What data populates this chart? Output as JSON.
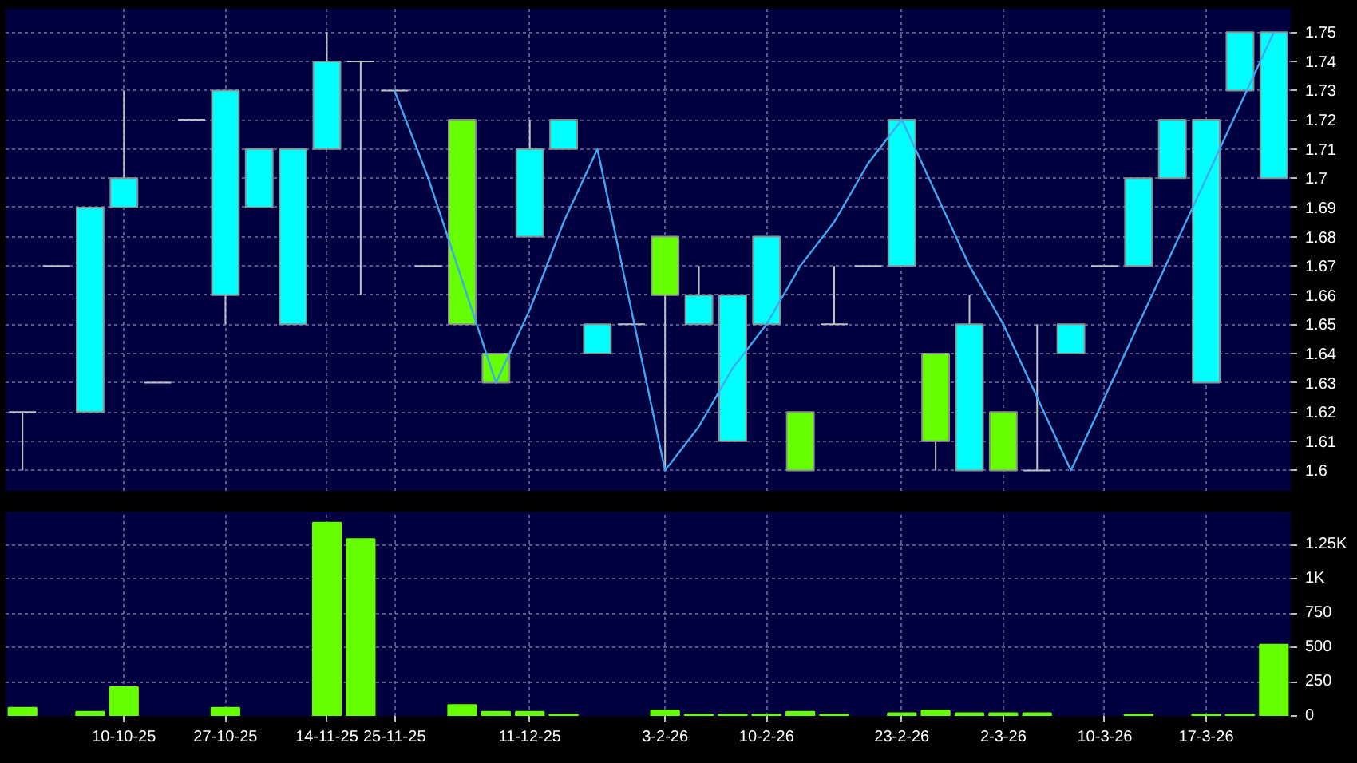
{
  "chart_data": [
    {
      "type": "candlestick",
      "categories": [
        null,
        null,
        null,
        "10-10-25",
        null,
        null,
        "27-10-25",
        null,
        null,
        "14-11-25",
        null,
        "25-11-25",
        null,
        null,
        null,
        "11-12-25",
        null,
        null,
        null,
        "3-2-26",
        null,
        null,
        "10-2-26",
        null,
        null,
        null,
        "23-2-26",
        null,
        null,
        "2-3-26",
        null,
        null,
        "10-3-26",
        null,
        null,
        "17-3-26",
        null,
        null
      ],
      "ohlc": [
        [
          1.62,
          1.62,
          1.6,
          1.62
        ],
        [
          1.67,
          1.67,
          1.67,
          1.67
        ],
        [
          1.62,
          1.69,
          1.62,
          1.69
        ],
        [
          1.69,
          1.73,
          1.69,
          1.7
        ],
        [
          1.63,
          1.63,
          1.63,
          1.63
        ],
        [
          1.72,
          1.72,
          1.72,
          1.72
        ],
        [
          1.66,
          1.73,
          1.65,
          1.73
        ],
        [
          1.69,
          1.71,
          1.69,
          1.71
        ],
        [
          1.65,
          1.71,
          1.65,
          1.71
        ],
        [
          1.71,
          1.75,
          1.71,
          1.74
        ],
        [
          1.74,
          1.74,
          1.66,
          1.74
        ],
        [
          1.73,
          1.73,
          1.73,
          1.73
        ],
        [
          1.67,
          1.67,
          1.67,
          1.67
        ],
        [
          1.72,
          1.72,
          1.65,
          1.65
        ],
        [
          1.64,
          1.64,
          1.63,
          1.63
        ],
        [
          1.68,
          1.72,
          1.68,
          1.71
        ],
        [
          1.71,
          1.72,
          1.71,
          1.72
        ],
        [
          1.64,
          1.65,
          1.64,
          1.65
        ],
        [
          1.65,
          1.65,
          1.65,
          1.65
        ],
        [
          1.68,
          1.68,
          1.6,
          1.66
        ],
        [
          1.65,
          1.67,
          1.65,
          1.66
        ],
        [
          1.61,
          1.66,
          1.61,
          1.66
        ],
        [
          1.65,
          1.68,
          1.65,
          1.68
        ],
        [
          1.62,
          1.62,
          1.6,
          1.6
        ],
        [
          1.65,
          1.67,
          1.65,
          1.65
        ],
        [
          1.67,
          1.67,
          1.67,
          1.67
        ],
        [
          1.67,
          1.72,
          1.67,
          1.72
        ],
        [
          1.64,
          1.64,
          1.6,
          1.61
        ],
        [
          1.6,
          1.66,
          1.6,
          1.65
        ],
        [
          1.62,
          1.62,
          1.6,
          1.6
        ],
        [
          1.6,
          1.65,
          1.6,
          1.6
        ],
        [
          1.64,
          1.65,
          1.64,
          1.65
        ],
        [
          1.67,
          1.67,
          1.67,
          1.67
        ],
        [
          1.67,
          1.7,
          1.67,
          1.7
        ],
        [
          1.7,
          1.72,
          1.7,
          1.72
        ],
        [
          1.63,
          1.72,
          1.63,
          1.72
        ],
        [
          1.73,
          1.75,
          1.73,
          1.75
        ],
        [
          1.7,
          1.75,
          1.7,
          1.75
        ]
      ],
      "colors": [
        "#c0c0c0",
        "#c0c0c0",
        "#00ffff",
        "#00ffff",
        "#c0c0c0",
        "#c0c0c0",
        "#00ffff",
        "#00ffff",
        "#00ffff",
        "#00ffff",
        "#c0c0c0",
        "#c0c0c0",
        "#c0c0c0",
        "#66ff00",
        "#66ff00",
        "#00ffff",
        "#00ffff",
        "#00ffff",
        "#c0c0c0",
        "#66ff00",
        "#00ffff",
        "#00ffff",
        "#00ffff",
        "#66ff00",
        "#c0c0c0",
        "#c0c0c0",
        "#00ffff",
        "#66ff00",
        "#00ffff",
        "#66ff00",
        "#c0c0c0",
        "#00ffff",
        "#c0c0c0",
        "#00ffff",
        "#00ffff",
        "#00ffff",
        "#00ffff",
        "#00ffff"
      ],
      "series": [
        {
          "type": "line",
          "color": "#40a8f0",
          "values": [
            null,
            null,
            null,
            null,
            null,
            null,
            null,
            null,
            null,
            null,
            null,
            1.73,
            1.7,
            1.665,
            1.63,
            1.655,
            1.685,
            1.71,
            1.655,
            1.6,
            1.615,
            1.635,
            1.65,
            1.67,
            1.685,
            1.705,
            1.72,
            1.695,
            1.67,
            1.65,
            1.625,
            1.6,
            1.625,
            1.65,
            1.675,
            1.7,
            1.725,
            1.75
          ]
        }
      ],
      "ylim": [
        1.593,
        1.758
      ],
      "yticks": [
        1.6,
        1.61,
        1.62,
        1.63,
        1.64,
        1.65,
        1.66,
        1.67,
        1.68,
        1.69,
        1.7,
        1.71,
        1.72,
        1.73,
        1.74,
        1.75
      ],
      "tick_labels": "y",
      "grid": true
    },
    {
      "type": "bar",
      "categories": [
        null,
        null,
        null,
        null,
        null,
        null,
        null,
        null,
        null,
        null,
        null,
        null,
        null,
        null,
        null,
        null,
        null,
        null,
        null,
        null,
        null,
        null,
        null,
        null,
        null,
        null,
        null,
        null,
        null,
        null,
        null,
        null,
        null,
        null,
        null,
        null,
        null,
        null
      ],
      "values": [
        60,
        null,
        30,
        210,
        null,
        null,
        60,
        null,
        null,
        1410,
        1290,
        null,
        null,
        80,
        30,
        30,
        10,
        null,
        null,
        40,
        10,
        10,
        10,
        30,
        10,
        null,
        20,
        40,
        20,
        20,
        20,
        null,
        null,
        10,
        null,
        10,
        10,
        520
      ],
      "color": "#66ff00",
      "ylim": [
        0,
        1490
      ],
      "yticks": [
        0,
        250,
        500,
        750,
        {
          "value": 1000,
          "label": "1K"
        },
        {
          "value": 1250,
          "label": "1.25K"
        }
      ],
      "grid": true
    }
  ]
}
